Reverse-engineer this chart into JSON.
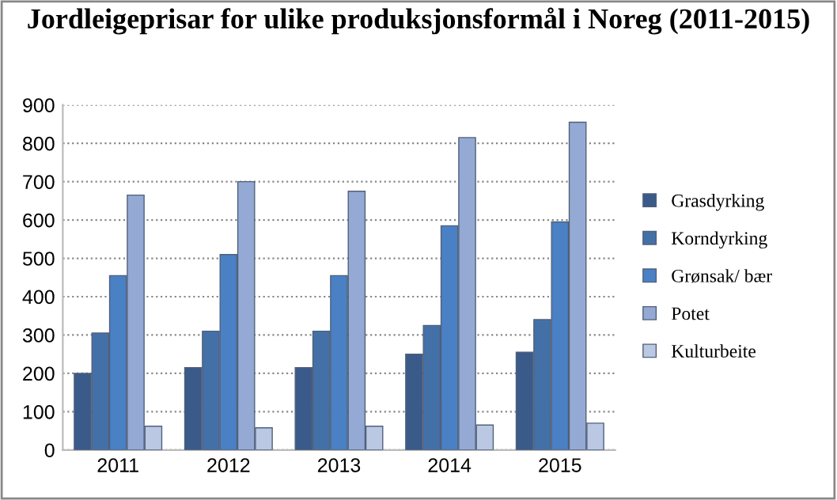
{
  "chart_data": {
    "type": "bar",
    "title": "Jordleigeprisar for ulike produksjonsformål i Noreg (2011-2015)",
    "categories": [
      "2011",
      "2012",
      "2013",
      "2014",
      "2015"
    ],
    "series": [
      {
        "name": "Grasdyrking",
        "color": "#3a5a8a",
        "values": [
          200,
          215,
          215,
          250,
          255
        ]
      },
      {
        "name": "Korndyrking",
        "color": "#4470a8",
        "values": [
          305,
          310,
          310,
          325,
          340
        ]
      },
      {
        "name": "Grønsak/ bær",
        "color": "#4a80c4",
        "values": [
          455,
          510,
          455,
          585,
          595
        ]
      },
      {
        "name": "Potet",
        "color": "#94a9d4",
        "values": [
          665,
          700,
          675,
          815,
          855
        ]
      },
      {
        "name": "Kulturbeite",
        "color": "#bac8e4",
        "values": [
          62,
          58,
          62,
          65,
          70
        ]
      }
    ],
    "ylim": [
      0,
      900
    ],
    "yticks": [
      0,
      100,
      200,
      300,
      400,
      500,
      600,
      700,
      800,
      900
    ],
    "grid": "y",
    "legend": "right"
  }
}
